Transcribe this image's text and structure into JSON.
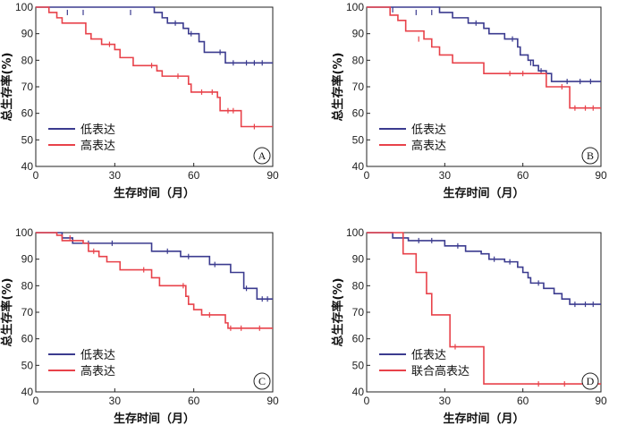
{
  "colors": {
    "low": "#3b3b8f",
    "high": "#e8424a",
    "axis": "#222222"
  },
  "chart_data": [
    {
      "type": "line",
      "panel": "A",
      "xlabel": "生存时间（月）",
      "ylabel": "总生存率(%)",
      "xlim": [
        0,
        90
      ],
      "ylim": [
        40,
        100
      ],
      "xticks": [
        0,
        30,
        60,
        90
      ],
      "yticks": [
        40,
        50,
        60,
        70,
        80,
        90,
        100
      ],
      "series": [
        {
          "name": "低表达",
          "color": "#3b3b8f",
          "steps": [
            [
              0,
              100
            ],
            [
              45,
              98
            ],
            [
              48,
              96
            ],
            [
              50,
              94
            ],
            [
              56,
              92
            ],
            [
              58,
              90
            ],
            [
              62,
              87
            ],
            [
              64,
              83
            ],
            [
              72,
              79
            ],
            [
              90,
              79
            ]
          ],
          "censors": [
            [
              12,
              98
            ],
            [
              18,
              98
            ],
            [
              36,
              98
            ],
            [
              53,
              94
            ],
            [
              59,
              90
            ],
            [
              70,
              83
            ],
            [
              75,
              79
            ],
            [
              80,
              79
            ],
            [
              83,
              79
            ],
            [
              86,
              79
            ]
          ]
        },
        {
          "name": "高表达",
          "color": "#e8424a",
          "steps": [
            [
              0,
              100
            ],
            [
              5,
              98
            ],
            [
              8,
              96
            ],
            [
              10,
              94
            ],
            [
              19,
              90
            ],
            [
              21,
              88
            ],
            [
              25,
              86
            ],
            [
              30,
              84
            ],
            [
              32,
              81
            ],
            [
              37,
              78
            ],
            [
              46,
              76
            ],
            [
              48,
              74
            ],
            [
              58,
              71
            ],
            [
              59,
              68
            ],
            [
              66,
              68
            ],
            [
              69,
              66
            ],
            [
              70,
              61
            ],
            [
              77,
              61
            ],
            [
              78,
              55
            ],
            [
              90,
              55
            ]
          ],
          "censors": [
            [
              28,
              86
            ],
            [
              44,
              78
            ],
            [
              54,
              74
            ],
            [
              63,
              68
            ],
            [
              67,
              68
            ],
            [
              73,
              61
            ],
            [
              75,
              61
            ],
            [
              83,
              55
            ]
          ]
        }
      ]
    },
    {
      "type": "line",
      "panel": "B",
      "xlabel": "生存时间（月）",
      "ylabel": "总生存率(%)",
      "xlim": [
        0,
        90
      ],
      "ylim": [
        40,
        100
      ],
      "xticks": [
        0,
        30,
        60,
        90
      ],
      "yticks": [
        40,
        50,
        60,
        70,
        80,
        90,
        100
      ],
      "series": [
        {
          "name": "低表达",
          "color": "#3b3b8f",
          "steps": [
            [
              0,
              100
            ],
            [
              28,
              98
            ],
            [
              33,
              96
            ],
            [
              39,
              94
            ],
            [
              45,
              92
            ],
            [
              47,
              90
            ],
            [
              53,
              88
            ],
            [
              58,
              85
            ],
            [
              59,
              82
            ],
            [
              62,
              80
            ],
            [
              64,
              78
            ],
            [
              66,
              76
            ],
            [
              69,
              75
            ],
            [
              71,
              72
            ],
            [
              90,
              72
            ]
          ],
          "censors": [
            [
              10,
              99
            ],
            [
              19,
              98
            ],
            [
              25,
              98
            ],
            [
              42,
              94
            ],
            [
              56,
              88
            ],
            [
              63,
              79
            ],
            [
              67,
              76
            ],
            [
              77,
              72
            ],
            [
              82,
              72
            ],
            [
              86,
              72
            ]
          ]
        },
        {
          "name": "高表达",
          "color": "#e8424a",
          "steps": [
            [
              0,
              100
            ],
            [
              9,
              97
            ],
            [
              12,
              95
            ],
            [
              15,
              91
            ],
            [
              22,
              88
            ],
            [
              25,
              85
            ],
            [
              28,
              82
            ],
            [
              33,
              79
            ],
            [
              45,
              75
            ],
            [
              69,
              70
            ],
            [
              78,
              62
            ],
            [
              90,
              62
            ]
          ],
          "censors": [
            [
              20,
              88
            ],
            [
              55,
              75
            ],
            [
              60,
              75
            ],
            [
              75,
              70
            ],
            [
              80,
              62
            ],
            [
              84,
              62
            ],
            [
              87,
              62
            ]
          ]
        }
      ]
    },
    {
      "type": "line",
      "panel": "C",
      "xlabel": "生存时间（月）",
      "ylabel": "总生存率(%)",
      "xlim": [
        0,
        90
      ],
      "ylim": [
        40,
        100
      ],
      "xticks": [
        0,
        30,
        60,
        90
      ],
      "yticks": [
        40,
        50,
        60,
        70,
        80,
        90,
        100
      ],
      "series": [
        {
          "name": "低表达",
          "color": "#3b3b8f",
          "steps": [
            [
              0,
              100
            ],
            [
              10,
              98
            ],
            [
              14,
              96
            ],
            [
              44,
              93
            ],
            [
              55,
              91
            ],
            [
              66,
              88
            ],
            [
              74,
              85
            ],
            [
              79,
              79
            ],
            [
              84,
              75
            ],
            [
              90,
              75
            ]
          ],
          "censors": [
            [
              20,
              96
            ],
            [
              29,
              96
            ],
            [
              50,
              93
            ],
            [
              58,
              91
            ],
            [
              68,
              88
            ],
            [
              80,
              79
            ],
            [
              86,
              75
            ],
            [
              88,
              75
            ]
          ]
        },
        {
          "name": "高表达",
          "color": "#e8424a",
          "steps": [
            [
              0,
              100
            ],
            [
              8,
              99
            ],
            [
              10,
              97
            ],
            [
              18,
              96
            ],
            [
              20,
              93
            ],
            [
              24,
              91
            ],
            [
              27,
              89
            ],
            [
              32,
              86
            ],
            [
              44,
              83
            ],
            [
              47,
              80
            ],
            [
              57,
              76
            ],
            [
              58,
              73
            ],
            [
              60,
              71
            ],
            [
              63,
              69
            ],
            [
              72,
              66
            ],
            [
              73,
              64
            ],
            [
              90,
              64
            ]
          ],
          "censors": [
            [
              13,
              98
            ],
            [
              22,
              93
            ],
            [
              41,
              86
            ],
            [
              56,
              80
            ],
            [
              66,
              69
            ],
            [
              74,
              64
            ],
            [
              78,
              64
            ],
            [
              85,
              64
            ]
          ]
        }
      ]
    },
    {
      "type": "line",
      "panel": "D",
      "xlabel": "生存时间（月）",
      "ylabel": "总生存率(%)",
      "xlim": [
        0,
        90
      ],
      "ylim": [
        40,
        100
      ],
      "xticks": [
        0,
        30,
        60,
        90
      ],
      "yticks": [
        40,
        50,
        60,
        70,
        80,
        90,
        100
      ],
      "series": [
        {
          "name": "低表达",
          "color": "#3b3b8f",
          "steps": [
            [
              0,
              100
            ],
            [
              10,
              98
            ],
            [
              16,
              97
            ],
            [
              30,
              95
            ],
            [
              38,
              93
            ],
            [
              44,
              92
            ],
            [
              47,
              90
            ],
            [
              53,
              89
            ],
            [
              58,
              87
            ],
            [
              60,
              85
            ],
            [
              62,
              83
            ],
            [
              63,
              81
            ],
            [
              68,
              79
            ],
            [
              72,
              77
            ],
            [
              75,
              75
            ],
            [
              78,
              73
            ],
            [
              90,
              73
            ]
          ],
          "censors": [
            [
              20,
              97
            ],
            [
              25,
              97
            ],
            [
              35,
              95
            ],
            [
              49,
              90
            ],
            [
              55,
              89
            ],
            [
              66,
              81
            ],
            [
              80,
              73
            ],
            [
              84,
              73
            ],
            [
              87,
              73
            ]
          ]
        },
        {
          "name": "联合高表达",
          "color": "#e8424a",
          "steps": [
            [
              0,
              100
            ],
            [
              14,
              92
            ],
            [
              19,
              85
            ],
            [
              23,
              77
            ],
            [
              25,
              69
            ],
            [
              32,
              57
            ],
            [
              45,
              43
            ],
            [
              90,
              43
            ]
          ],
          "censors": [
            [
              34,
              57
            ],
            [
              66,
              43
            ],
            [
              76,
              43
            ]
          ]
        }
      ]
    }
  ]
}
